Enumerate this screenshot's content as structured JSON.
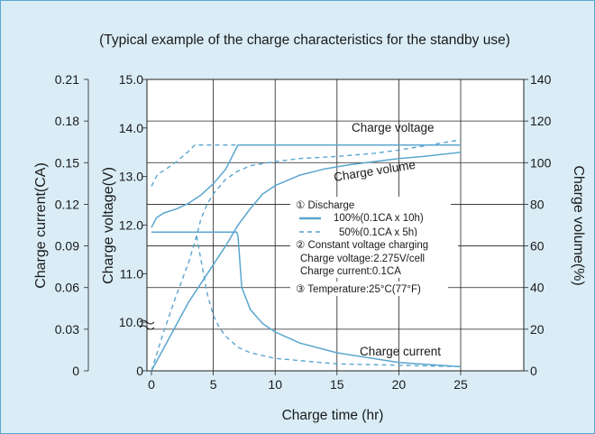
{
  "chart_data": {
    "type": "line",
    "title": "(Typical example of the charge characteristics for the standby use)",
    "xlabel": "Charge time  (hr)",
    "x_ticks": [
      "0",
      "5",
      "10",
      "15",
      "20",
      "25"
    ],
    "xlim": [
      0,
      25
    ],
    "axes": {
      "current": {
        "label": "Charge current(CA)",
        "ticks": [
          "0",
          "0.03",
          "0.06",
          "0.09",
          "0.12",
          "0.15",
          "0.18",
          "0.21"
        ],
        "ylim": [
          0,
          0.21
        ]
      },
      "voltage": {
        "label": "Charge voltage(V)",
        "ticks": [
          "0",
          "10.0",
          "11.0",
          "12.0",
          "13.0",
          "14.0",
          "15.0"
        ],
        "ylim": [
          9.0,
          15.0
        ],
        "axis_break": true
      },
      "volume": {
        "label": "Charge volume(%)",
        "ticks": [
          "0",
          "20",
          "40",
          "60",
          "80",
          "100",
          "120",
          "140"
        ],
        "ylim": [
          0,
          140
        ]
      }
    },
    "grid": true,
    "series": [
      {
        "group": "voltage",
        "style": "solid",
        "axis": "voltage",
        "x": [
          0,
          0.4,
          1,
          2,
          3,
          4,
          5,
          6,
          7,
          10,
          15,
          20,
          25
        ],
        "y": [
          11.95,
          12.15,
          12.25,
          12.33,
          12.45,
          12.62,
          12.85,
          13.15,
          13.65,
          13.65,
          13.65,
          13.65,
          13.65
        ]
      },
      {
        "group": "voltage",
        "style": "dashed",
        "axis": "voltage",
        "x": [
          0,
          0.5,
          1,
          2,
          3,
          3.5,
          5,
          10,
          15,
          20,
          25
        ],
        "y": [
          12.8,
          13.05,
          13.12,
          13.3,
          13.52,
          13.65,
          13.65,
          13.65,
          13.65,
          13.65,
          13.65
        ]
      },
      {
        "group": "volume",
        "style": "solid",
        "axis": "volume",
        "x": [
          0,
          3,
          6,
          7,
          8,
          9,
          10,
          12,
          14,
          16,
          18,
          20,
          22,
          25
        ],
        "y": [
          0,
          33,
          60,
          70,
          78,
          85,
          89,
          94,
          97,
          99,
          100.5,
          102,
          103,
          105
        ]
      },
      {
        "group": "volume",
        "style": "dashed",
        "axis": "volume",
        "x": [
          0,
          1,
          2,
          3,
          3.7,
          4,
          4.5,
          5,
          6,
          7,
          8,
          10,
          12,
          15,
          18,
          20,
          22,
          25
        ],
        "y": [
          0,
          19,
          36,
          52,
          66,
          73,
          80,
          85,
          92,
          96,
          98.5,
          100.5,
          102,
          103,
          104.5,
          106,
          108,
          111
        ]
      },
      {
        "group": "current",
        "style": "solid",
        "axis": "current",
        "x": [
          0,
          6.9,
          7.0,
          7.3,
          8,
          9,
          10,
          12,
          15,
          20,
          25
        ],
        "y": [
          0.1,
          0.1,
          0.097,
          0.06,
          0.044,
          0.034,
          0.028,
          0.02,
          0.013,
          0.006,
          0.003
        ]
      },
      {
        "group": "current",
        "style": "dashed",
        "axis": "current",
        "x": [
          0,
          3.6,
          4,
          4.5,
          5,
          5.5,
          6,
          7,
          8,
          10,
          15,
          20,
          25
        ],
        "y": [
          0.1,
          0.1,
          0.08,
          0.056,
          0.04,
          0.031,
          0.025,
          0.017,
          0.013,
          0.009,
          0.005,
          0.004,
          0.003
        ]
      }
    ],
    "curve_labels": {
      "voltage": "Charge voltage",
      "volume": "Charge volume",
      "current": "Charge current"
    },
    "legend": {
      "discharge": {
        "title": "① Discharge",
        "solid": "100%(0.1CA x 10h)",
        "dashed": "50%(0.1CA x 5h)"
      },
      "charging": {
        "title": "② Constant voltage charging",
        "voltage": "Charge voltage:2.275V/cell",
        "current": "Charge current:0.1CA"
      },
      "temperature": "③ Temperature:25°C(77°F)"
    },
    "colors": {
      "curve": "#5aa6cf",
      "frame_bg": "#daedf7",
      "grid": "#222222"
    }
  }
}
